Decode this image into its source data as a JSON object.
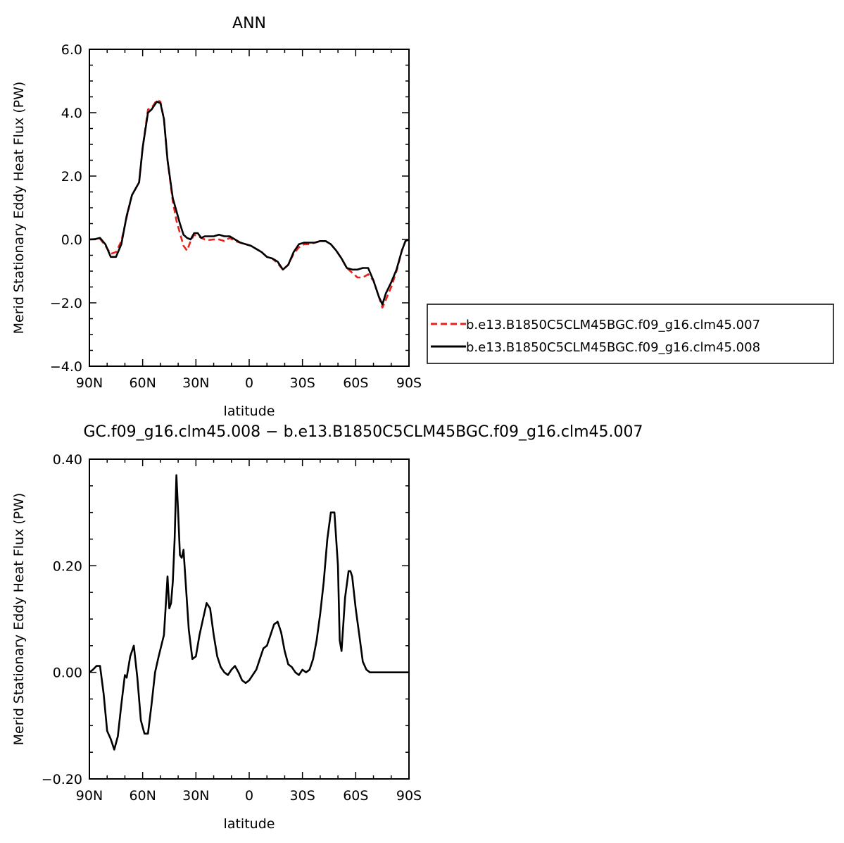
{
  "chart_data": [
    {
      "type": "line",
      "title": "ANN",
      "xlabel": "latitude",
      "ylabel": "Merid Stationary Eddy Heat Flux (PW)",
      "xlim": [
        90,
        -90
      ],
      "ylim": [
        -4.0,
        6.0
      ],
      "x_ticks": [
        "90N",
        "60N",
        "30N",
        "0",
        "30S",
        "60S",
        "90S"
      ],
      "y_ticks": [
        "6.0",
        "4.0",
        "2.0",
        "0.0",
        "−2.0",
        "−4.0"
      ],
      "grid": false,
      "legend_position": "right",
      "series": [
        {
          "name": "b.e13.B1850C5CLM45BGC.f09_g16.clm45.007",
          "color": "#e8231d",
          "dash": "dashed",
          "points": [
            [
              90,
              0.0
            ],
            [
              87,
              0.0
            ],
            [
              84,
              0.02
            ],
            [
              81,
              -0.2
            ],
            [
              78,
              -0.45
            ],
            [
              75,
              -0.4
            ],
            [
              72,
              -0.05
            ],
            [
              69,
              0.7
            ],
            [
              66,
              1.4
            ],
            [
              62,
              1.8
            ],
            [
              60,
              2.9
            ],
            [
              57,
              4.1
            ],
            [
              55,
              4.15
            ],
            [
              52,
              4.4
            ],
            [
              50,
              4.35
            ],
            [
              48,
              3.8
            ],
            [
              46,
              2.5
            ],
            [
              43,
              1.2
            ],
            [
              41,
              0.6
            ],
            [
              39,
              0.2
            ],
            [
              37,
              -0.2
            ],
            [
              35,
              -0.35
            ],
            [
              33,
              -0.05
            ],
            [
              31,
              0.15
            ],
            [
              29,
              0.1
            ],
            [
              27,
              0.05
            ],
            [
              25,
              0.0
            ],
            [
              23,
              -0.02
            ],
            [
              20,
              0.0
            ],
            [
              17,
              0.0
            ],
            [
              14,
              -0.05
            ],
            [
              11,
              0.05
            ],
            [
              8,
              -0.05
            ],
            [
              5,
              -0.1
            ],
            [
              2,
              -0.15
            ],
            [
              -1,
              -0.2
            ],
            [
              -4,
              -0.3
            ],
            [
              -7,
              -0.4
            ],
            [
              -10,
              -0.55
            ],
            [
              -13,
              -0.6
            ],
            [
              -16,
              -0.75
            ],
            [
              -19,
              -0.95
            ],
            [
              -22,
              -0.8
            ],
            [
              -25,
              -0.45
            ],
            [
              -28,
              -0.25
            ],
            [
              -31,
              -0.15
            ],
            [
              -34,
              -0.15
            ],
            [
              -37,
              -0.1
            ],
            [
              -40,
              -0.05
            ],
            [
              -43,
              -0.05
            ],
            [
              -46,
              -0.15
            ],
            [
              -49,
              -0.35
            ],
            [
              -52,
              -0.6
            ],
            [
              -55,
              -0.9
            ],
            [
              -58,
              -1.05
            ],
            [
              -61,
              -1.2
            ],
            [
              -64,
              -1.2
            ],
            [
              -67,
              -1.1
            ],
            [
              -70,
              -1.3
            ],
            [
              -73,
              -1.8
            ],
            [
              -75,
              -2.15
            ],
            [
              -77,
              -1.9
            ],
            [
              -80,
              -1.5
            ],
            [
              -83,
              -1.0
            ],
            [
              -86,
              -0.35
            ],
            [
              -88,
              -0.05
            ],
            [
              -90,
              0.0
            ]
          ]
        },
        {
          "name": "b.e13.B1850C5CLM45BGC.f09_g16.clm45.008",
          "color": "#000000",
          "dash": "solid",
          "points": [
            [
              90,
              0.0
            ],
            [
              87,
              0.01
            ],
            [
              84,
              0.05
            ],
            [
              81,
              -0.15
            ],
            [
              78,
              -0.55
            ],
            [
              75,
              -0.55
            ],
            [
              72,
              -0.15
            ],
            [
              69,
              0.75
            ],
            [
              66,
              1.4
            ],
            [
              62,
              1.8
            ],
            [
              60,
              2.9
            ],
            [
              57,
              4.0
            ],
            [
              55,
              4.1
            ],
            [
              52,
              4.35
            ],
            [
              50,
              4.3
            ],
            [
              48,
              3.8
            ],
            [
              46,
              2.5
            ],
            [
              43,
              1.3
            ],
            [
              41,
              0.9
            ],
            [
              39,
              0.5
            ],
            [
              37,
              0.15
            ],
            [
              35,
              0.05
            ],
            [
              33,
              0.0
            ],
            [
              31,
              0.2
            ],
            [
              29,
              0.2
            ],
            [
              27,
              0.05
            ],
            [
              25,
              0.1
            ],
            [
              23,
              0.1
            ],
            [
              20,
              0.1
            ],
            [
              17,
              0.15
            ],
            [
              14,
              0.1
            ],
            [
              11,
              0.1
            ],
            [
              8,
              0.0
            ],
            [
              5,
              -0.1
            ],
            [
              2,
              -0.15
            ],
            [
              -1,
              -0.2
            ],
            [
              -4,
              -0.3
            ],
            [
              -7,
              -0.4
            ],
            [
              -10,
              -0.55
            ],
            [
              -13,
              -0.6
            ],
            [
              -16,
              -0.7
            ],
            [
              -19,
              -0.95
            ],
            [
              -22,
              -0.8
            ],
            [
              -25,
              -0.4
            ],
            [
              -28,
              -0.15
            ],
            [
              -31,
              -0.1
            ],
            [
              -34,
              -0.1
            ],
            [
              -37,
              -0.1
            ],
            [
              -40,
              -0.05
            ],
            [
              -43,
              -0.05
            ],
            [
              -46,
              -0.15
            ],
            [
              -49,
              -0.35
            ],
            [
              -52,
              -0.6
            ],
            [
              -55,
              -0.9
            ],
            [
              -58,
              -0.95
            ],
            [
              -61,
              -0.95
            ],
            [
              -64,
              -0.9
            ],
            [
              -67,
              -0.9
            ],
            [
              -70,
              -1.3
            ],
            [
              -73,
              -1.8
            ],
            [
              -75,
              -2.05
            ],
            [
              -77,
              -1.7
            ],
            [
              -80,
              -1.35
            ],
            [
              -83,
              -0.95
            ],
            [
              -86,
              -0.35
            ],
            [
              -88,
              -0.05
            ],
            [
              -90,
              0.0
            ]
          ]
        }
      ]
    },
    {
      "type": "line",
      "title": "GC.f09_g16.clm45.008 − b.e13.B1850C5CLM45BGC.f09_g16.clm45.007",
      "xlabel": "latitude",
      "ylabel": "Merid Stationary Eddy Heat Flux (PW)",
      "xlim": [
        90,
        -90
      ],
      "ylim": [
        -0.2,
        0.4
      ],
      "x_ticks": [
        "90N",
        "60N",
        "30N",
        "0",
        "30S",
        "60S",
        "90S"
      ],
      "y_ticks": [
        "0.40",
        "0.20",
        "0.00",
        "−0.20"
      ],
      "grid": false,
      "series": [
        {
          "color": "#000000",
          "dash": "solid",
          "points": [
            [
              90,
              0.0
            ],
            [
              88,
              0.005
            ],
            [
              86,
              0.012
            ],
            [
              84,
              0.012
            ],
            [
              82,
              -0.04
            ],
            [
              80,
              -0.11
            ],
            [
              78,
              -0.125
            ],
            [
              76,
              -0.145
            ],
            [
              74,
              -0.12
            ],
            [
              72,
              -0.06
            ],
            [
              70,
              -0.005
            ],
            [
              69,
              -0.01
            ],
            [
              67,
              0.03
            ],
            [
              65,
              0.05
            ],
            [
              63,
              -0.01
            ],
            [
              61,
              -0.09
            ],
            [
              59,
              -0.115
            ],
            [
              57,
              -0.115
            ],
            [
              55,
              -0.06
            ],
            [
              53,
              0.0
            ],
            [
              51,
              0.03
            ],
            [
              48,
              0.07
            ],
            [
              46,
              0.18
            ],
            [
              45,
              0.12
            ],
            [
              44,
              0.13
            ],
            [
              43,
              0.17
            ],
            [
              42,
              0.25
            ],
            [
              41,
              0.37
            ],
            [
              40,
              0.3
            ],
            [
              39,
              0.22
            ],
            [
              38,
              0.215
            ],
            [
              37,
              0.23
            ],
            [
              36,
              0.18
            ],
            [
              34,
              0.08
            ],
            [
              32,
              0.025
            ],
            [
              30,
              0.03
            ],
            [
              28,
              0.07
            ],
            [
              26,
              0.1
            ],
            [
              24,
              0.13
            ],
            [
              22,
              0.12
            ],
            [
              20,
              0.07
            ],
            [
              18,
              0.03
            ],
            [
              16,
              0.01
            ],
            [
              14,
              0.0
            ],
            [
              12,
              -0.005
            ],
            [
              10,
              0.005
            ],
            [
              8,
              0.012
            ],
            [
              6,
              0.0
            ],
            [
              4,
              -0.015
            ],
            [
              2,
              -0.02
            ],
            [
              0,
              -0.015
            ],
            [
              -2,
              -0.005
            ],
            [
              -4,
              0.005
            ],
            [
              -6,
              0.025
            ],
            [
              -8,
              0.045
            ],
            [
              -10,
              0.05
            ],
            [
              -12,
              0.07
            ],
            [
              -14,
              0.09
            ],
            [
              -16,
              0.095
            ],
            [
              -18,
              0.075
            ],
            [
              -20,
              0.04
            ],
            [
              -22,
              0.015
            ],
            [
              -24,
              0.01
            ],
            [
              -26,
              0.0
            ],
            [
              -28,
              -0.005
            ],
            [
              -30,
              0.005
            ],
            [
              -32,
              0.0
            ],
            [
              -34,
              0.005
            ],
            [
              -36,
              0.025
            ],
            [
              -38,
              0.06
            ],
            [
              -40,
              0.11
            ],
            [
              -42,
              0.17
            ],
            [
              -44,
              0.25
            ],
            [
              -46,
              0.3
            ],
            [
              -48,
              0.3
            ],
            [
              -50,
              0.2
            ],
            [
              -51,
              0.06
            ],
            [
              -52,
              0.04
            ],
            [
              -54,
              0.14
            ],
            [
              -56,
              0.19
            ],
            [
              -57,
              0.19
            ],
            [
              -58,
              0.18
            ],
            [
              -60,
              0.12
            ],
            [
              -62,
              0.07
            ],
            [
              -64,
              0.02
            ],
            [
              -66,
              0.005
            ],
            [
              -68,
              0.0
            ],
            [
              -90,
              0.0
            ]
          ]
        }
      ]
    }
  ]
}
